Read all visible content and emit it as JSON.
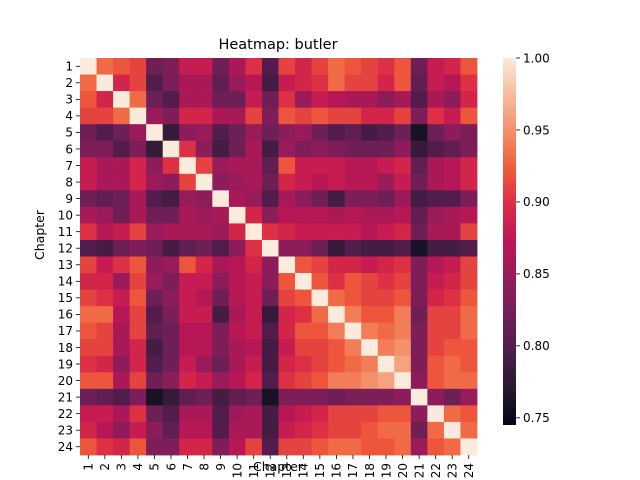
{
  "chart_data": {
    "type": "heatmap",
    "title": "Heatmap: butler",
    "xlabel": "Chapter",
    "ylabel": "Chapter",
    "rows": [
      "1",
      "2",
      "3",
      "4",
      "5",
      "6",
      "7",
      "8",
      "9",
      "10",
      "11",
      "12",
      "13",
      "14",
      "15",
      "16",
      "17",
      "18",
      "19",
      "20",
      "21",
      "22",
      "23",
      "24"
    ],
    "columns": [
      "1",
      "2",
      "3",
      "4",
      "5",
      "6",
      "7",
      "8",
      "9",
      "10",
      "11",
      "12",
      "13",
      "14",
      "15",
      "16",
      "17",
      "18",
      "19",
      "20",
      "21",
      "22",
      "23",
      "24"
    ],
    "colorbar": {
      "min": 0.745,
      "max": 1.0,
      "ticks": [
        1.0,
        0.95,
        0.9,
        0.85,
        0.8,
        0.75
      ],
      "tick_labels": [
        "1.00",
        "0.95",
        "0.90",
        "0.85",
        "0.80",
        "0.75"
      ],
      "colormap": "rocket"
    },
    "values": [
      [
        1.0,
        0.93,
        0.92,
        0.91,
        0.82,
        0.83,
        0.88,
        0.88,
        0.82,
        0.86,
        0.9,
        0.8,
        0.91,
        0.89,
        0.91,
        0.93,
        0.92,
        0.91,
        0.9,
        0.92,
        0.82,
        0.88,
        0.89,
        0.92
      ],
      [
        0.93,
        1.0,
        0.89,
        0.91,
        0.8,
        0.83,
        0.86,
        0.86,
        0.81,
        0.85,
        0.87,
        0.79,
        0.88,
        0.89,
        0.9,
        0.93,
        0.91,
        0.91,
        0.89,
        0.92,
        0.81,
        0.88,
        0.87,
        0.9
      ],
      [
        0.92,
        0.89,
        1.0,
        0.93,
        0.82,
        0.8,
        0.86,
        0.86,
        0.82,
        0.82,
        0.88,
        0.82,
        0.9,
        0.85,
        0.88,
        0.87,
        0.86,
        0.86,
        0.84,
        0.86,
        0.8,
        0.86,
        0.84,
        0.89
      ],
      [
        0.91,
        0.91,
        0.93,
        1.0,
        0.85,
        0.83,
        0.89,
        0.89,
        0.86,
        0.86,
        0.91,
        0.83,
        0.92,
        0.91,
        0.92,
        0.91,
        0.91,
        0.89,
        0.89,
        0.91,
        0.83,
        0.9,
        0.88,
        0.92
      ],
      [
        0.82,
        0.8,
        0.82,
        0.85,
        1.0,
        0.78,
        0.84,
        0.85,
        0.8,
        0.82,
        0.85,
        0.82,
        0.84,
        0.85,
        0.82,
        0.8,
        0.81,
        0.79,
        0.8,
        0.82,
        0.76,
        0.82,
        0.84,
        0.83
      ],
      [
        0.83,
        0.83,
        0.8,
        0.83,
        0.78,
        1.0,
        0.9,
        0.84,
        0.79,
        0.82,
        0.86,
        0.79,
        0.85,
        0.83,
        0.84,
        0.83,
        0.82,
        0.82,
        0.82,
        0.84,
        0.78,
        0.8,
        0.81,
        0.83
      ],
      [
        0.88,
        0.86,
        0.86,
        0.89,
        0.84,
        0.9,
        1.0,
        0.91,
        0.85,
        0.86,
        0.86,
        0.81,
        0.92,
        0.88,
        0.88,
        0.88,
        0.87,
        0.87,
        0.88,
        0.89,
        0.81,
        0.86,
        0.87,
        0.89
      ],
      [
        0.88,
        0.86,
        0.86,
        0.89,
        0.85,
        0.84,
        0.91,
        1.0,
        0.84,
        0.85,
        0.86,
        0.82,
        0.89,
        0.88,
        0.87,
        0.88,
        0.87,
        0.87,
        0.85,
        0.88,
        0.82,
        0.86,
        0.87,
        0.89
      ],
      [
        0.82,
        0.81,
        0.82,
        0.86,
        0.8,
        0.79,
        0.85,
        0.84,
        1.0,
        0.86,
        0.85,
        0.8,
        0.86,
        0.84,
        0.82,
        0.79,
        0.83,
        0.83,
        0.82,
        0.85,
        0.79,
        0.8,
        0.8,
        0.83
      ],
      [
        0.86,
        0.85,
        0.82,
        0.86,
        0.82,
        0.82,
        0.86,
        0.85,
        0.86,
        1.0,
        0.89,
        0.84,
        0.87,
        0.87,
        0.87,
        0.86,
        0.87,
        0.86,
        0.86,
        0.87,
        0.81,
        0.85,
        0.86,
        0.87
      ],
      [
        0.9,
        0.87,
        0.88,
        0.91,
        0.85,
        0.86,
        0.86,
        0.86,
        0.85,
        0.89,
        1.0,
        0.9,
        0.89,
        0.88,
        0.88,
        0.88,
        0.88,
        0.87,
        0.88,
        0.89,
        0.82,
        0.86,
        0.86,
        0.91
      ],
      [
        0.8,
        0.79,
        0.82,
        0.83,
        0.82,
        0.79,
        0.81,
        0.82,
        0.8,
        0.84,
        0.9,
        1.0,
        0.84,
        0.84,
        0.82,
        0.78,
        0.8,
        0.79,
        0.79,
        0.8,
        0.76,
        0.79,
        0.79,
        0.8
      ],
      [
        0.91,
        0.88,
        0.9,
        0.92,
        0.84,
        0.85,
        0.92,
        0.89,
        0.86,
        0.87,
        0.89,
        0.84,
        1.0,
        0.92,
        0.91,
        0.89,
        0.89,
        0.88,
        0.89,
        0.9,
        0.83,
        0.87,
        0.88,
        0.91
      ],
      [
        0.89,
        0.89,
        0.85,
        0.91,
        0.85,
        0.83,
        0.88,
        0.88,
        0.84,
        0.87,
        0.88,
        0.84,
        0.92,
        1.0,
        0.92,
        0.9,
        0.92,
        0.91,
        0.9,
        0.91,
        0.83,
        0.88,
        0.89,
        0.91
      ],
      [
        0.91,
        0.9,
        0.88,
        0.92,
        0.82,
        0.84,
        0.88,
        0.87,
        0.82,
        0.87,
        0.88,
        0.82,
        0.91,
        0.92,
        1.0,
        0.93,
        0.92,
        0.91,
        0.91,
        0.92,
        0.83,
        0.89,
        0.9,
        0.92
      ],
      [
        0.93,
        0.93,
        0.87,
        0.91,
        0.8,
        0.83,
        0.88,
        0.88,
        0.79,
        0.86,
        0.88,
        0.78,
        0.89,
        0.9,
        0.93,
        1.0,
        0.94,
        0.92,
        0.92,
        0.94,
        0.82,
        0.91,
        0.91,
        0.93
      ],
      [
        0.92,
        0.91,
        0.86,
        0.91,
        0.81,
        0.82,
        0.87,
        0.87,
        0.83,
        0.87,
        0.88,
        0.8,
        0.89,
        0.92,
        0.92,
        0.94,
        1.0,
        0.94,
        0.93,
        0.94,
        0.83,
        0.91,
        0.91,
        0.93
      ],
      [
        0.91,
        0.91,
        0.86,
        0.89,
        0.79,
        0.82,
        0.87,
        0.87,
        0.83,
        0.86,
        0.87,
        0.79,
        0.88,
        0.91,
        0.91,
        0.92,
        0.94,
        1.0,
        0.94,
        0.95,
        0.83,
        0.91,
        0.92,
        0.92
      ],
      [
        0.9,
        0.89,
        0.84,
        0.89,
        0.8,
        0.82,
        0.88,
        0.85,
        0.82,
        0.86,
        0.88,
        0.79,
        0.89,
        0.9,
        0.91,
        0.92,
        0.93,
        0.94,
        1.0,
        0.96,
        0.83,
        0.92,
        0.93,
        0.92
      ],
      [
        0.92,
        0.92,
        0.86,
        0.91,
        0.82,
        0.84,
        0.89,
        0.88,
        0.85,
        0.87,
        0.89,
        0.8,
        0.9,
        0.91,
        0.92,
        0.94,
        0.94,
        0.95,
        0.96,
        1.0,
        0.84,
        0.92,
        0.93,
        0.93
      ],
      [
        0.82,
        0.81,
        0.8,
        0.83,
        0.76,
        0.78,
        0.81,
        0.82,
        0.79,
        0.81,
        0.82,
        0.76,
        0.83,
        0.83,
        0.83,
        0.82,
        0.83,
        0.83,
        0.83,
        0.84,
        1.0,
        0.84,
        0.82,
        0.85
      ],
      [
        0.88,
        0.88,
        0.86,
        0.9,
        0.82,
        0.8,
        0.86,
        0.86,
        0.8,
        0.85,
        0.86,
        0.79,
        0.87,
        0.88,
        0.89,
        0.91,
        0.91,
        0.91,
        0.92,
        0.92,
        0.84,
        1.0,
        0.93,
        0.92
      ],
      [
        0.89,
        0.87,
        0.84,
        0.88,
        0.84,
        0.81,
        0.87,
        0.87,
        0.8,
        0.86,
        0.86,
        0.79,
        0.88,
        0.89,
        0.9,
        0.91,
        0.91,
        0.92,
        0.93,
        0.93,
        0.82,
        0.93,
        1.0,
        0.93
      ],
      [
        0.92,
        0.9,
        0.89,
        0.92,
        0.83,
        0.83,
        0.89,
        0.89,
        0.83,
        0.87,
        0.91,
        0.8,
        0.91,
        0.91,
        0.92,
        0.93,
        0.93,
        0.92,
        0.92,
        0.93,
        0.85,
        0.92,
        0.93,
        1.0
      ]
    ]
  }
}
